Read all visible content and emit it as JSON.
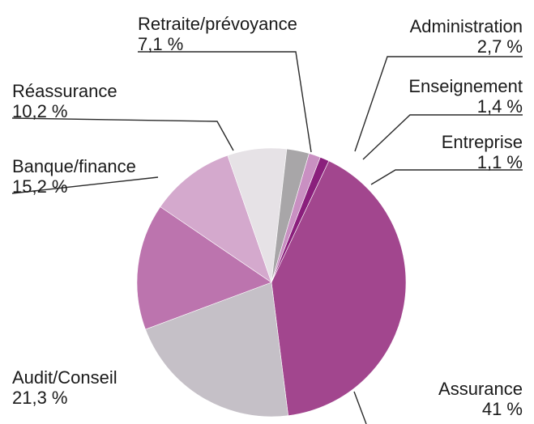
{
  "chart_data": {
    "type": "pie",
    "title": "",
    "slices": [
      {
        "name": "Assurance",
        "label": "41 %",
        "value": 41.0,
        "color": "#a2468e"
      },
      {
        "name": "Audit/Conseil",
        "label": "21,3 %",
        "value": 21.3,
        "color": "#c5c0c7"
      },
      {
        "name": "Banque/finance",
        "label": "15,2 %",
        "value": 15.2,
        "color": "#bc74ae"
      },
      {
        "name": "Réassurance",
        "label": "10,2 %",
        "value": 10.2,
        "color": "#d4a9cd"
      },
      {
        "name": "Retraite/prévoyance",
        "label": "7,1 %",
        "value": 7.1,
        "color": "#e6e2e6"
      },
      {
        "name": "Administration",
        "label": "2,7 %",
        "value": 2.7,
        "color": "#a8a6a8"
      },
      {
        "name": "Enseignement",
        "label": "1,4 %",
        "value": 1.4,
        "color": "#c990c2"
      },
      {
        "name": "Entreprise",
        "label": "1,1 %",
        "value": 1.1,
        "color": "#8a1f7c"
      }
    ]
  }
}
